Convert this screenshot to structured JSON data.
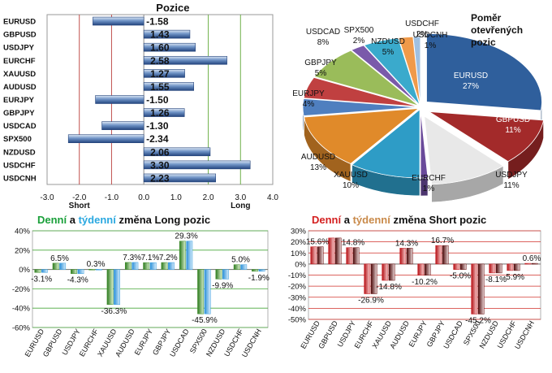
{
  "colors": {
    "long_daily": "#3f8f2a",
    "long_weekly": "#3a9ee0",
    "short_daily": "#c8151b",
    "short_weekly": "#6b1010",
    "title_green": "#1aa03a",
    "title_blue": "#2aa8e0",
    "title_red": "#d42020",
    "title_brown": "#c98a4a",
    "bar_blue": "#2b4f8c",
    "grid_green": "#49a83a",
    "grid_red": "#d0302a"
  },
  "chart_data": [
    {
      "type": "bar",
      "orientation": "horizontal",
      "title": "Pozice",
      "categories": [
        "EURUSD",
        "GBPUSD",
        "USDJPY",
        "EURCHF",
        "XAUUSD",
        "AUDUSD",
        "EURJPY",
        "GBPJPY",
        "USDCAD",
        "SPX500",
        "NZDUSD",
        "USDCHF",
        "USDCNH"
      ],
      "values": [
        -1.58,
        1.43,
        1.6,
        2.58,
        1.27,
        1.55,
        -1.5,
        1.26,
        -1.3,
        -2.34,
        2.06,
        3.3,
        2.23
      ],
      "labels": [
        "-1.58",
        "1.43",
        "1.60",
        "2.58",
        "1.27",
        "1.55",
        "-1.50",
        "1.26",
        "-1.30",
        "-2.34",
        "2.06",
        "3.30",
        "2.23"
      ],
      "xlim": [
        -3.0,
        4.0
      ],
      "xticks": [
        "-3.0",
        "-2.0",
        "-1.0",
        "0.0",
        "1.0",
        "2.0",
        "3.0",
        "4.0"
      ],
      "xtick_values": [
        -3,
        -2,
        -1,
        0,
        1,
        2,
        3,
        4
      ],
      "annotations": {
        "short": "Short",
        "long": "Long"
      }
    },
    {
      "type": "pie",
      "title": [
        "Poměr",
        "otevřených",
        "pozic"
      ],
      "slices": [
        {
          "name": "EURUSD",
          "value": 27,
          "label": "27%",
          "color": "#2f5f9c"
        },
        {
          "name": "GBPUSD",
          "value": 11,
          "label": "11%",
          "color": "#a32a2a"
        },
        {
          "name": "USDJPY",
          "value": 11,
          "label": "11%",
          "color": "#e8e8e8"
        },
        {
          "name": "EURCHF",
          "value": 1,
          "label": "1%",
          "color": "#6a4a9a"
        },
        {
          "name": "XAUUSD",
          "value": 10,
          "label": "10%",
          "color": "#2e9cc6"
        },
        {
          "name": "AUDUSD",
          "value": 13,
          "label": "13%",
          "color": "#e08a2a"
        },
        {
          "name": "EURJPY",
          "value": 4,
          "label": "4%",
          "color": "#4f7fbf"
        },
        {
          "name": "GBPJPY",
          "value": 5,
          "label": "5%",
          "color": "#c04040"
        },
        {
          "name": "USDCAD",
          "value": 8,
          "label": "8%",
          "color": "#9abc5a"
        },
        {
          "name": "SPX500",
          "value": 2,
          "label": "2%",
          "color": "#7a5aaa"
        },
        {
          "name": "NZDUSD",
          "value": 5,
          "label": "5%",
          "color": "#3aaacc"
        },
        {
          "name": "USDCHF",
          "value": 2,
          "label": "2%",
          "color": "#f09a4a"
        },
        {
          "name": "USDCNH",
          "value": 1,
          "label": "1%",
          "color": "#a0c0e0"
        }
      ]
    },
    {
      "type": "bar",
      "title_parts": [
        "Denní",
        " a ",
        "týdenní",
        " změna Long pozic"
      ],
      "categories": [
        "EURUSD",
        "GBPUSD",
        "USDJPY",
        "EURCHF",
        "XAUUSD",
        "AUDUSD",
        "EURJPY",
        "GBPJPY",
        "USDCAD",
        "SPX500",
        "NZDUSD",
        "USDCHF",
        "USDCNH"
      ],
      "series": [
        {
          "values": [
            -3.1,
            6.5,
            -4.3,
            0.3,
            -36.3,
            7.3,
            7.1,
            7.2,
            29.3,
            -45.9,
            -9.9,
            5.0,
            -1.9
          ]
        },
        {
          "values": [
            -3.1,
            6.5,
            -4.3,
            0.3,
            -36.3,
            7.3,
            7.1,
            7.2,
            29.3,
            -45.9,
            -9.9,
            5.0,
            -1.9
          ]
        }
      ],
      "labels": [
        "-3.1%",
        "6.5%",
        "-4.3%",
        "0.3%",
        "-36.3%",
        "7.3%",
        "7.1%",
        "7.2%",
        "29.3%",
        "-45.9%",
        "-9.9%",
        "5.0%",
        "-1.9%"
      ],
      "ylim": [
        -60,
        40
      ],
      "yticks": [
        "40%",
        "20%",
        "0%",
        "-20%",
        "-40%",
        "-60%"
      ],
      "ytick_values": [
        40,
        20,
        0,
        -20,
        -40,
        -60
      ]
    },
    {
      "type": "bar",
      "title_parts": [
        "Denní",
        " a ",
        "týdenní",
        " změna Short pozic"
      ],
      "categories": [
        "EURUSD",
        "GBPUSD",
        "USDJPY",
        "EURCHF",
        "XAUUSD",
        "AUDUSD",
        "EURJPY",
        "GBPJPY",
        "USDCAD",
        "SPX500",
        "NZDUSD",
        "USDCHF",
        "USDCNH"
      ],
      "series": [
        {
          "values": [
            15.6,
            23.5,
            14.8,
            -26.9,
            -14.8,
            14.3,
            -10.2,
            16.7,
            -5.0,
            -45.2,
            -8.1,
            -5.9,
            0.6
          ]
        },
        {
          "values": [
            15.6,
            23.5,
            14.8,
            -26.9,
            -14.8,
            14.3,
            -10.2,
            16.7,
            -5.0,
            -45.2,
            -8.1,
            -5.9,
            0.6
          ]
        }
      ],
      "labels": [
        "15.6%",
        "",
        "14.8%",
        "-26.9%",
        "-14.8%",
        "14.3%",
        "-10.2%",
        "16.7%",
        "-5.0%",
        "-45.2%",
        "-8.1%",
        "-5.9%",
        "0.6%"
      ],
      "ylim": [
        -50,
        30
      ],
      "yticks": [
        "30%",
        "20%",
        "10%",
        "0%",
        "-10%",
        "-20%",
        "-30%",
        "-40%",
        "-50%"
      ],
      "ytick_values": [
        30,
        20,
        10,
        0,
        -10,
        -20,
        -30,
        -40,
        -50
      ]
    }
  ]
}
